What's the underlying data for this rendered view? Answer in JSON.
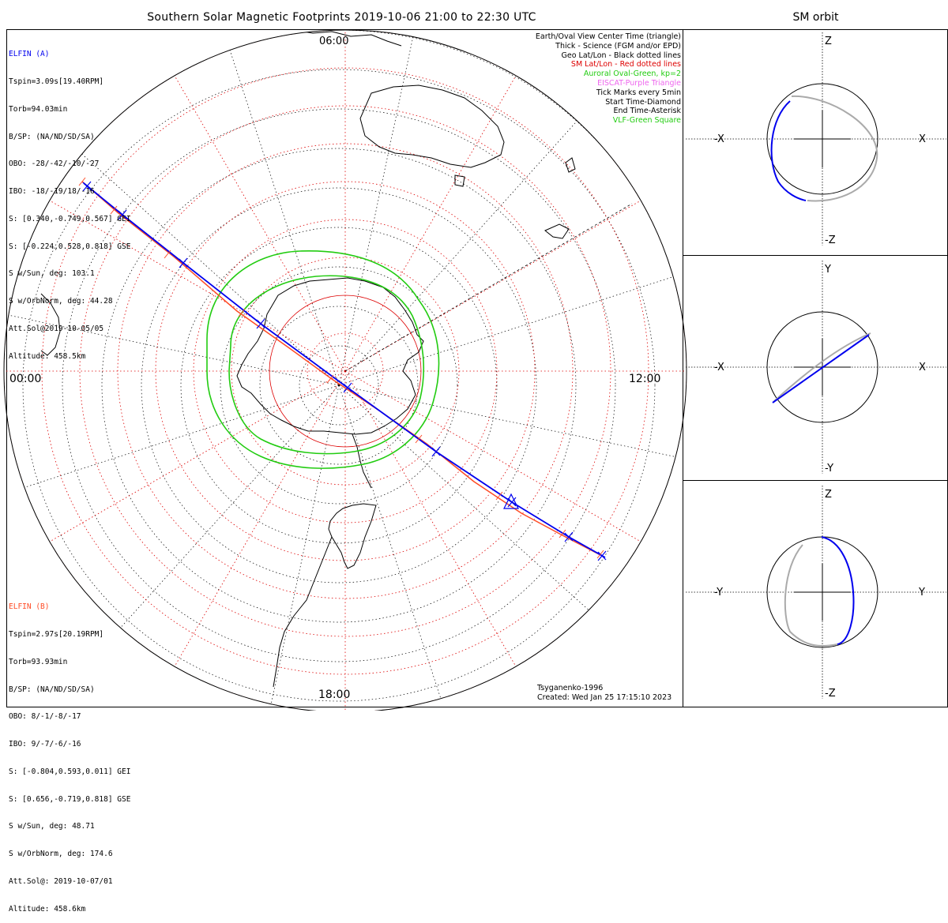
{
  "title": "Southern Solar Magnetic Footprints 2019-10-06 21:00 to 22:30 UTC",
  "orbit_panel_title": "SM orbit",
  "colors": {
    "elfin_a": "#0000ee",
    "elfin_b": "#ff4b25",
    "sm_grid": "#dd0000",
    "auroral_oval": "#22cc11",
    "eiscat": "#ee66ee",
    "orbit_gray": "#aaaaaa",
    "coast": "#000000"
  },
  "elfin_a": {
    "name": "ELFIN (A)",
    "lines": [
      "Tspin=3.09s[19.40RPM]",
      "Torb=94.03min",
      "B/SP: (NA/ND/SD/SA)",
      "OBO: -28/-42/-10/-27",
      "IBO: -18/-19/18/-16",
      "S: [0.340,-0.749,0.567] GEI",
      "S: [-0.224,0.528,0.818] GSE",
      "S w/Sun, deg: 103.1",
      "S w/OrbNorm, deg: 44.28",
      "Att.Sol@2019-10-05/05",
      "Altitude: 458.5km"
    ]
  },
  "elfin_b": {
    "name": "ELFIN (B)",
    "lines": [
      "Tspin=2.97s[20.19RPM]",
      "Torb=93.93min",
      "B/SP: (NA/ND/SD/SA)",
      "OBO: 8/-1/-8/-17",
      "IBO: 9/-7/-6/-16",
      "S: [-0.804,0.593,0.011] GEI",
      "S: [0.656,-0.719,0.818] GSE",
      "S w/Sun, deg: 48.71",
      "S w/OrbNorm, deg: 174.6",
      "Att.Sol@: 2019-10-07/01",
      "Altitude: 458.6km"
    ]
  },
  "legend": [
    {
      "text": "Earth/Oval View Center Time (triangle)",
      "color": "#000000"
    },
    {
      "text": "Thick - Science (FGM and/or EPD)",
      "color": "#000000"
    },
    {
      "text": "Geo Lat/Lon - Black dotted lines",
      "color": "#000000"
    },
    {
      "text": "SM Lat/Lon - Red dotted lines",
      "color": "#dd0000"
    },
    {
      "text": "Auroral Oval-Green, kp=2",
      "color": "#22cc11"
    },
    {
      "text": "EISCAT-Purple Triangle",
      "color": "#ee66ee"
    },
    {
      "text": "Tick Marks every 5min",
      "color": "#000000"
    },
    {
      "text": "Start Time-Diamond",
      "color": "#000000"
    },
    {
      "text": "End Time-Asterisk",
      "color": "#000000"
    },
    {
      "text": "VLF-Green Square",
      "color": "#22cc11"
    }
  ],
  "map": {
    "label_left": "00:00",
    "label_right": "12:00",
    "label_bottom": "18:00",
    "label_top": "06:00"
  },
  "credits": {
    "model": "Tsyganenko-1996",
    "created": "Created: Wed Jan 25 17:15:10 2023"
  },
  "orbit_panels": [
    {
      "left": "-X",
      "right": "X",
      "top": "Z",
      "bottom": "-Z"
    },
    {
      "left": "-X",
      "right": "X",
      "top": "Y",
      "bottom": "-Y"
    },
    {
      "left": "-Y",
      "right": "Y",
      "top": "Z",
      "bottom": "-Z"
    }
  ]
}
